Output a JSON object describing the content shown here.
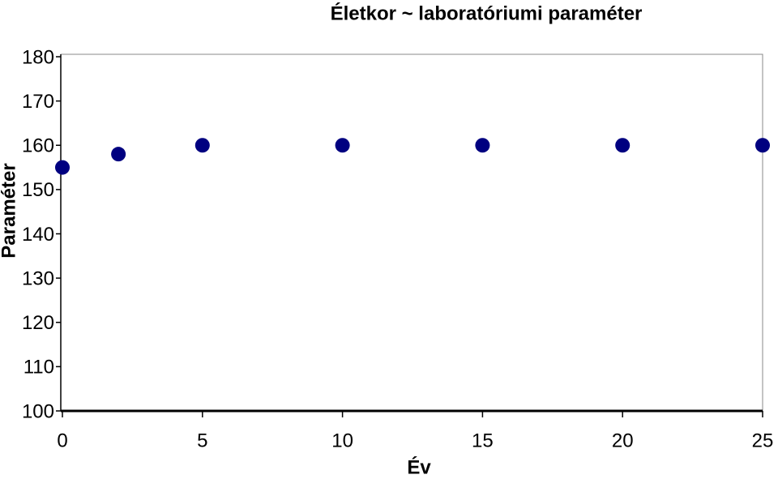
{
  "chart_data": {
    "type": "scatter",
    "title": "Életkor ~ laboratóriumi paraméter",
    "x_label": "Év",
    "y_label": "Paraméter",
    "series": [
      {
        "color": "#000080",
        "x": [
          0,
          2,
          5,
          10,
          15,
          20,
          25
        ],
        "values": [
          155,
          158,
          160,
          160,
          160,
          160,
          160
        ]
      }
    ],
    "xlim": [
      0,
      25
    ],
    "xticks": [
      0,
      5,
      10,
      15,
      20,
      25
    ],
    "ylim": [
      100,
      180
    ],
    "yticks": [
      100,
      110,
      120,
      130,
      140,
      150,
      160,
      170,
      180
    ]
  }
}
